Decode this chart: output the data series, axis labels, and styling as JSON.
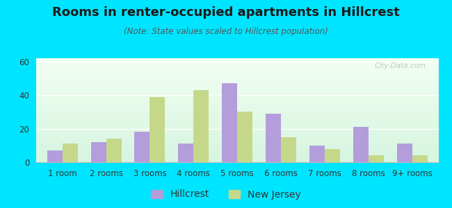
{
  "title": "Rooms in renter-occupied apartments in Hillcrest",
  "subtitle": "(Note: State values scaled to Hillcrest population)",
  "categories": [
    "1 room",
    "2 rooms",
    "3 rooms",
    "4 rooms",
    "5 rooms",
    "6 rooms",
    "7 rooms",
    "8 rooms",
    "9+ rooms"
  ],
  "hillcrest": [
    7,
    12,
    18,
    11,
    47,
    29,
    10,
    21,
    11
  ],
  "new_jersey": [
    11,
    14,
    39,
    43,
    30,
    15,
    8,
    4,
    4
  ],
  "hillcrest_color": "#b39ddb",
  "new_jersey_color": "#c5d88a",
  "bg_color": "#00e5ff",
  "ylim": [
    0,
    62
  ],
  "yticks": [
    0,
    20,
    40,
    60
  ],
  "watermark": "City-Data.com",
  "bar_width": 0.35,
  "title_fontsize": 13,
  "subtitle_fontsize": 8.5,
  "legend_fontsize": 10,
  "tick_fontsize": 8.5
}
